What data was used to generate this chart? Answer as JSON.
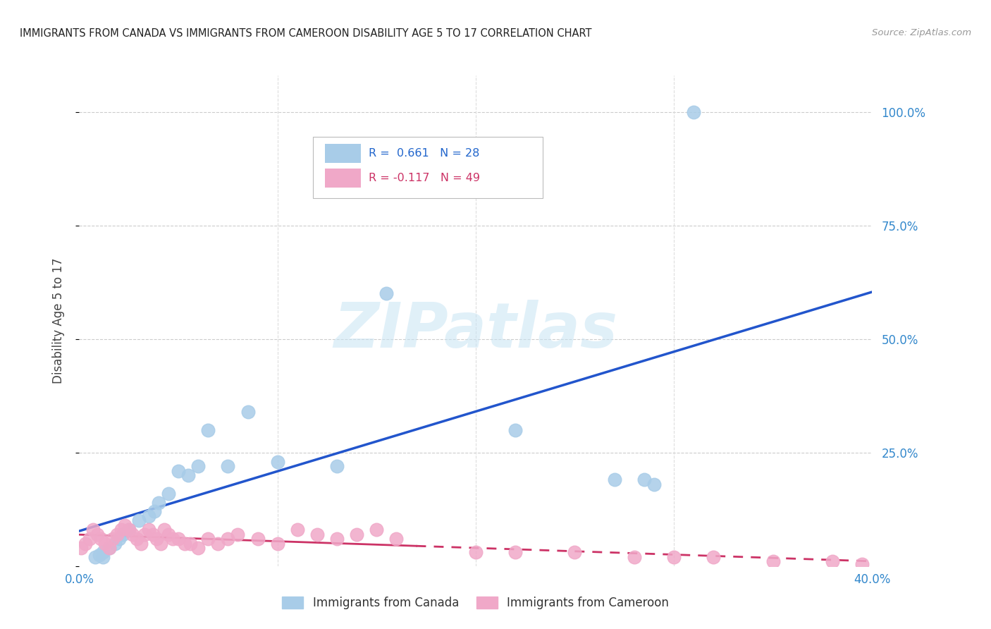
{
  "title": "IMMIGRANTS FROM CANADA VS IMMIGRANTS FROM CAMEROON DISABILITY AGE 5 TO 17 CORRELATION CHART",
  "source": "Source: ZipAtlas.com",
  "ylabel": "Disability Age 5 to 17",
  "xlim": [
    0.0,
    0.4
  ],
  "ylim": [
    0.0,
    1.08
  ],
  "canada_R": 0.661,
  "canada_N": 28,
  "cameroon_R": -0.117,
  "cameroon_N": 49,
  "canada_color": "#a8cce8",
  "cameroon_color": "#f0a8c8",
  "canada_line_color": "#2255cc",
  "cameroon_line_color": "#cc3366",
  "ytick_vals": [
    0.0,
    0.25,
    0.5,
    0.75,
    1.0
  ],
  "xtick_vals": [
    0.0,
    0.1,
    0.2,
    0.3,
    0.4
  ],
  "canada_x": [
    0.31,
    0.155,
    0.22,
    0.13,
    0.1,
    0.085,
    0.075,
    0.065,
    0.06,
    0.055,
    0.05,
    0.045,
    0.04,
    0.038,
    0.035,
    0.03,
    0.025,
    0.022,
    0.02,
    0.018,
    0.015,
    0.012,
    0.01,
    0.008,
    0.285,
    0.27,
    0.29,
    0.012
  ],
  "canada_y": [
    1.0,
    0.6,
    0.3,
    0.22,
    0.23,
    0.34,
    0.22,
    0.3,
    0.22,
    0.2,
    0.21,
    0.16,
    0.14,
    0.12,
    0.11,
    0.1,
    0.08,
    0.07,
    0.06,
    0.05,
    0.04,
    0.03,
    0.025,
    0.02,
    0.19,
    0.19,
    0.18,
    0.02
  ],
  "cameroon_x": [
    0.001,
    0.003,
    0.005,
    0.007,
    0.009,
    0.011,
    0.013,
    0.015,
    0.017,
    0.019,
    0.021,
    0.023,
    0.025,
    0.027,
    0.029,
    0.031,
    0.033,
    0.035,
    0.037,
    0.039,
    0.041,
    0.043,
    0.045,
    0.047,
    0.05,
    0.053,
    0.056,
    0.06,
    0.065,
    0.07,
    0.075,
    0.08,
    0.09,
    0.1,
    0.11,
    0.12,
    0.13,
    0.14,
    0.15,
    0.16,
    0.2,
    0.22,
    0.25,
    0.28,
    0.3,
    0.32,
    0.35,
    0.38,
    0.395
  ],
  "cameroon_y": [
    0.04,
    0.05,
    0.06,
    0.08,
    0.07,
    0.06,
    0.05,
    0.04,
    0.06,
    0.07,
    0.08,
    0.09,
    0.08,
    0.07,
    0.06,
    0.05,
    0.07,
    0.08,
    0.07,
    0.06,
    0.05,
    0.08,
    0.07,
    0.06,
    0.06,
    0.05,
    0.05,
    0.04,
    0.06,
    0.05,
    0.06,
    0.07,
    0.06,
    0.05,
    0.08,
    0.07,
    0.06,
    0.07,
    0.08,
    0.06,
    0.03,
    0.03,
    0.03,
    0.02,
    0.02,
    0.02,
    0.01,
    0.01,
    0.005
  ]
}
